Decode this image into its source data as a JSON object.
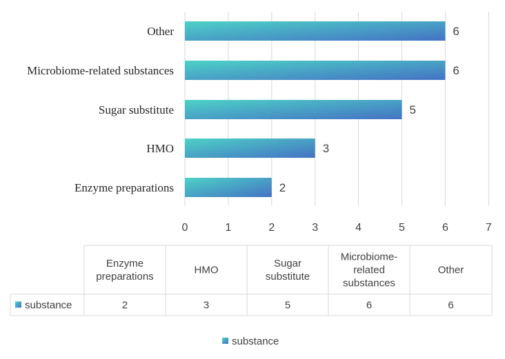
{
  "chart_data": {
    "type": "bar",
    "orientation": "horizontal",
    "categories": [
      "Enzyme preparations",
      "HMO",
      "Sugar substitute",
      "Microbiome-related substances",
      "Other"
    ],
    "series": [
      {
        "name": "substance",
        "values": [
          2,
          3,
          5,
          6,
          6
        ]
      }
    ],
    "xlim": [
      0,
      7
    ],
    "xticks": [
      0,
      1,
      2,
      3,
      4,
      5,
      6,
      7
    ],
    "grid": true,
    "legend_position": "bottom",
    "data_table": {
      "headers": [
        [
          "Enzyme",
          "preparations"
        ],
        [
          "HMO"
        ],
        [
          "Sugar",
          "substitute"
        ],
        [
          "Microbiome-",
          "related",
          "substances"
        ],
        [
          "Other"
        ]
      ]
    },
    "colors": {
      "bar_start": "#4DD2C6",
      "bar_end": "#4472C4",
      "grid": "#D9D9D9",
      "text": "#404040"
    }
  }
}
